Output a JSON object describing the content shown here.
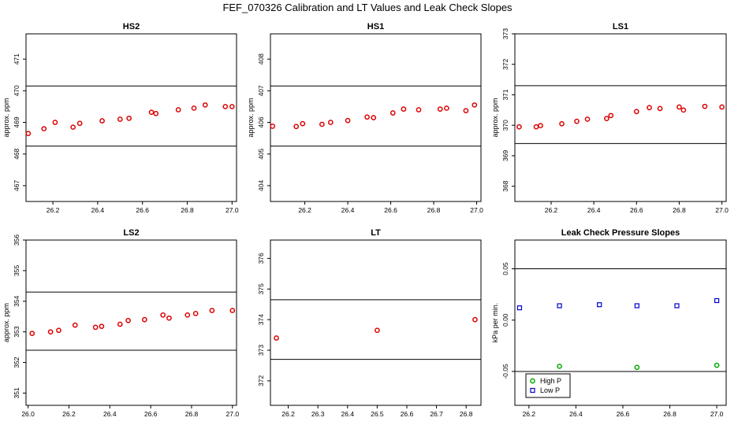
{
  "title": "FEF_070326  Calibration and LT Values and Leak Check Slopes",
  "chart_data": [
    {
      "type": "scatter",
      "title": "HS2",
      "ylabel": "approx. ppm",
      "xlabel": "",
      "xlim": [
        26.08,
        27.02
      ],
      "ylim": [
        466.5,
        471.8
      ],
      "xticks": [
        26.2,
        26.4,
        26.6,
        26.8,
        27.0
      ],
      "xtick_labels": [
        "26.2",
        "26.4",
        "26.6",
        "26.8",
        "27.0"
      ],
      "yticks": [
        467,
        468,
        469,
        470,
        471
      ],
      "ref_lines": [
        470.15,
        468.25
      ],
      "series": [
        {
          "color": "#dd0000",
          "marker": "circle",
          "x": [
            26.09,
            26.16,
            26.21,
            26.29,
            26.32,
            26.42,
            26.5,
            26.54,
            26.64,
            26.66,
            26.76,
            26.83,
            26.88,
            26.97,
            27.0
          ],
          "y": [
            468.65,
            468.8,
            469.0,
            468.85,
            468.97,
            469.05,
            469.1,
            469.13,
            469.32,
            469.28,
            469.4,
            469.45,
            469.55,
            469.5,
            469.5
          ]
        }
      ]
    },
    {
      "type": "scatter",
      "title": "HS1",
      "ylabel": "approx. ppm",
      "xlabel": "",
      "xlim": [
        26.04,
        27.02
      ],
      "ylim": [
        403.5,
        408.8
      ],
      "xticks": [
        26.2,
        26.4,
        26.6,
        26.8,
        27.0
      ],
      "xtick_labels": [
        "26.2",
        "26.4",
        "26.6",
        "26.8",
        "27.0"
      ],
      "yticks": [
        404,
        405,
        406,
        407,
        408
      ],
      "ref_lines": [
        407.15,
        405.25
      ],
      "series": [
        {
          "color": "#dd0000",
          "marker": "circle",
          "x": [
            26.05,
            26.16,
            26.19,
            26.28,
            26.32,
            26.4,
            26.49,
            26.52,
            26.61,
            26.66,
            26.73,
            26.83,
            26.86,
            26.95,
            26.99
          ],
          "y": [
            405.88,
            405.87,
            405.96,
            405.94,
            406.0,
            406.06,
            406.17,
            406.15,
            406.3,
            406.42,
            406.4,
            406.42,
            406.45,
            406.37,
            406.55
          ]
        }
      ]
    },
    {
      "type": "scatter",
      "title": "LS1",
      "ylabel": "approx. ppm",
      "xlabel": "",
      "xlim": [
        26.03,
        27.02
      ],
      "ylim": [
        367.5,
        373.0
      ],
      "xticks": [
        26.2,
        26.4,
        26.6,
        26.8,
        27.0
      ],
      "xtick_labels": [
        "26.2",
        "26.4",
        "26.6",
        "26.8",
        "27.0"
      ],
      "yticks": [
        368,
        369,
        370,
        371,
        372,
        373
      ],
      "ref_lines": [
        371.3,
        369.4
      ],
      "series": [
        {
          "color": "#dd0000",
          "marker": "circle",
          "x": [
            26.05,
            26.13,
            26.15,
            26.25,
            26.32,
            26.37,
            26.46,
            26.48,
            26.6,
            26.66,
            26.71,
            26.8,
            26.82,
            26.92,
            27.0
          ],
          "y": [
            369.95,
            369.95,
            369.99,
            370.05,
            370.13,
            370.2,
            370.22,
            370.32,
            370.45,
            370.58,
            370.55,
            370.6,
            370.5,
            370.62,
            370.6
          ]
        }
      ]
    },
    {
      "type": "scatter",
      "title": "LS2",
      "ylabel": "approx. ppm",
      "xlabel": "",
      "xlim": [
        25.99,
        27.02
      ],
      "ylim": [
        350.6,
        356.0
      ],
      "xticks": [
        26.0,
        26.2,
        26.4,
        26.6,
        26.8,
        27.0
      ],
      "xtick_labels": [
        "26.0",
        "26.2",
        "26.4",
        "26.6",
        "26.8",
        "27.0"
      ],
      "yticks": [
        351,
        352,
        353,
        354,
        355,
        356
      ],
      "ref_lines": [
        354.3,
        352.4
      ],
      "series": [
        {
          "color": "#dd0000",
          "marker": "circle",
          "x": [
            26.02,
            26.11,
            26.15,
            26.23,
            26.33,
            26.36,
            26.45,
            26.49,
            26.57,
            26.66,
            26.69,
            26.78,
            26.82,
            26.9,
            27.0
          ],
          "y": [
            352.95,
            353.0,
            353.05,
            353.22,
            353.15,
            353.18,
            353.25,
            353.37,
            353.4,
            353.55,
            353.45,
            353.55,
            353.6,
            353.7,
            353.7
          ]
        }
      ]
    },
    {
      "type": "scatter",
      "title": "LT",
      "ylabel": "",
      "xlabel": "",
      "xlim": [
        26.14,
        26.85
      ],
      "ylim": [
        371.2,
        376.6
      ],
      "xticks": [
        26.2,
        26.3,
        26.4,
        26.5,
        26.6,
        26.7,
        26.8
      ],
      "xtick_labels": [
        "26.2",
        "26.3",
        "26.4",
        "26.5",
        "26.6",
        "26.7",
        "26.8"
      ],
      "yticks": [
        372,
        373,
        374,
        375,
        376
      ],
      "ref_lines": [
        374.65,
        372.7
      ],
      "series": [
        {
          "color": "#dd0000",
          "marker": "circle",
          "x": [
            26.16,
            26.5,
            26.83
          ],
          "y": [
            373.4,
            373.65,
            374.0
          ]
        }
      ]
    },
    {
      "type": "scatter",
      "title": "Leak Check Pressure Slopes",
      "ylabel": "kPa per min.",
      "xlabel": "",
      "xlim": [
        26.14,
        27.04
      ],
      "ylim": [
        -0.083,
        0.078
      ],
      "xticks": [
        26.2,
        26.4,
        26.6,
        26.8,
        27.0
      ],
      "xtick_labels": [
        "26.2",
        "26.4",
        "26.6",
        "26.8",
        "27.0"
      ],
      "yticks": [
        -0.05,
        0.0,
        0.05
      ],
      "ytick_labels": [
        "-0.05",
        "0.00",
        "0.05"
      ],
      "ref_lines": [
        0.05,
        -0.05
      ],
      "legend": {
        "position": "bottom-left"
      },
      "series": [
        {
          "name": "High P",
          "color": "#00aa00",
          "marker": "circle",
          "x": [
            26.33,
            26.66,
            27.0
          ],
          "y": [
            -0.045,
            -0.046,
            -0.044
          ]
        },
        {
          "name": "Low P",
          "color": "#0000cc",
          "marker": "square",
          "x": [
            26.16,
            26.33,
            26.5,
            26.66,
            26.83,
            27.0
          ],
          "y": [
            0.012,
            0.014,
            0.015,
            0.014,
            0.014,
            0.019
          ]
        }
      ]
    }
  ]
}
